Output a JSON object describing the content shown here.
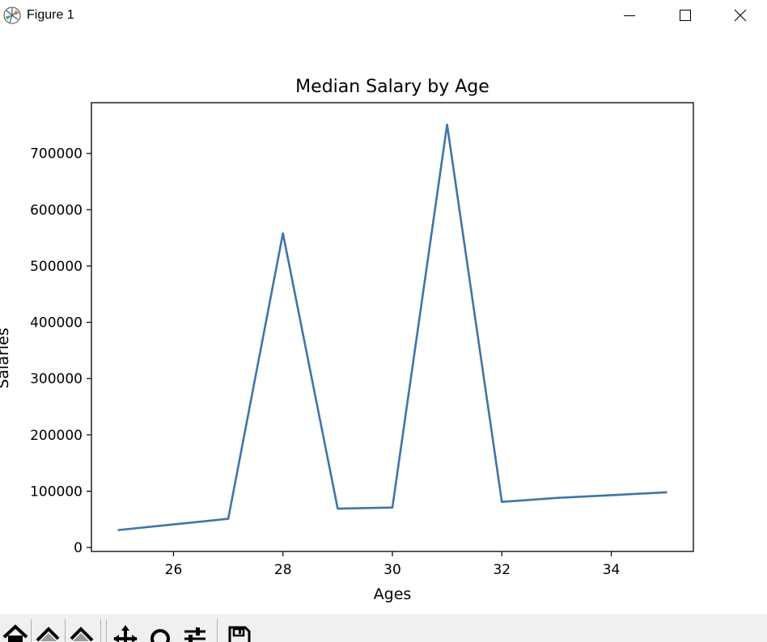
{
  "window": {
    "title": "Figure 1",
    "icons": [
      "matplotlib-icon",
      "minimize-icon",
      "maximize-icon",
      "close-icon"
    ]
  },
  "toolbar": {
    "icons": [
      "home-icon",
      "back-icon",
      "forward-icon",
      "pan-icon",
      "zoom-icon",
      "configure-subplots-icon",
      "save-icon"
    ]
  },
  "chart_data": {
    "type": "line",
    "title": "Median Salary by Age",
    "xlabel": "Ages",
    "ylabel": "Salaries",
    "x": [
      25,
      26,
      27,
      28,
      29,
      30,
      31,
      32,
      33,
      34,
      35
    ],
    "series": [
      {
        "values": [
          31000,
          41000,
          51000,
          558000,
          69000,
          71000,
          751000,
          81000,
          88000,
          93000,
          98000
        ],
        "color": "#3a75ae"
      }
    ],
    "xlim": [
      24.5,
      35.5
    ],
    "ylim": [
      -7000,
      790000
    ],
    "xticks": [
      26,
      28,
      30,
      32,
      34
    ],
    "yticks": [
      0,
      100000,
      200000,
      300000,
      400000,
      500000,
      600000,
      700000
    ],
    "xtick_labels": [
      "26",
      "28",
      "30",
      "32",
      "34"
    ],
    "ytick_labels": [
      "0",
      "100000",
      "200000",
      "300000",
      "400000",
      "500000",
      "600000",
      "700000"
    ],
    "grid": false,
    "legend": "none"
  }
}
